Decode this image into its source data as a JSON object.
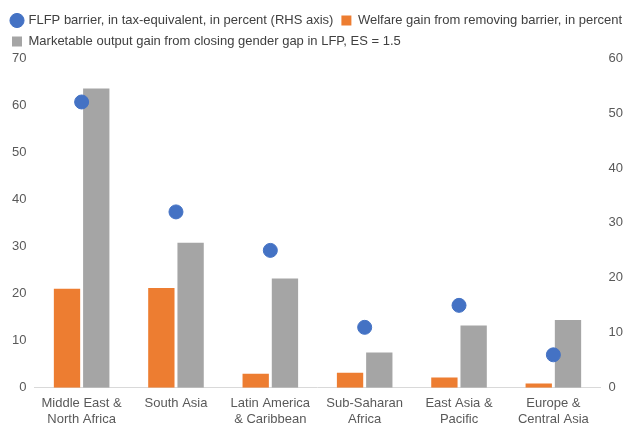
{
  "chart_data": {
    "type": "bar",
    "categories": [
      [
        "Middle East &",
        "North Africa"
      ],
      "South Asia",
      [
        "Latin America",
        "& Caribbean"
      ],
      [
        "Sub-Saharan",
        "Africa"
      ],
      [
        "East Asia &",
        "Pacific"
      ],
      [
        "Europe &",
        "Central Asia"
      ]
    ],
    "series": [
      {
        "name": "Welfare gain from removing barrier, in percent",
        "color": "#ED7D31",
        "values": [
          21,
          21.2,
          3,
          3.2,
          2.2,
          0.9
        ]
      },
      {
        "name": "Marketable output gain from closing gender gap in LFP, ES = 1.5",
        "color": "#A5A5A5",
        "values": [
          63.5,
          30.8,
          23.2,
          7.5,
          13.2,
          14.4
        ]
      },
      {
        "name": "FLFP barrier, in tax-equivalent, in percent (RHS axis)",
        "color": "#4472C4",
        "type": "scatter",
        "marker": "circle",
        "axis": "y2",
        "values": [
          52,
          32,
          25,
          11,
          15,
          6
        ]
      }
    ],
    "ylim": [
      0,
      70
    ],
    "yticks": [
      0,
      10,
      20,
      30,
      40,
      50,
      60,
      70
    ],
    "y2lim": [
      0,
      60
    ],
    "y2ticks": [
      0,
      10,
      20,
      30,
      40,
      50,
      60
    ],
    "grid": false,
    "legend": "top"
  }
}
